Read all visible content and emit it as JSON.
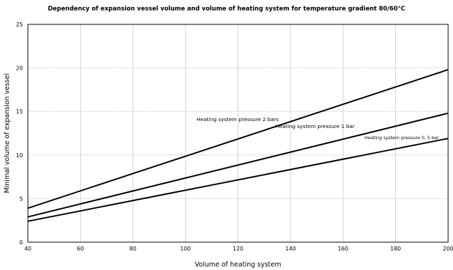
{
  "chart_data": {
    "type": "line",
    "title": "Dependency of expansion vessel volume and volume of heating system for temperature gradient 80/60°C",
    "xlabel": "Volume of heating system",
    "ylabel": "Minimal volume of expansion vessel",
    "xlim": [
      40,
      200
    ],
    "ylim": [
      0,
      25
    ],
    "xticks": [
      40,
      60,
      80,
      100,
      120,
      140,
      160,
      180,
      200
    ],
    "yticks": [
      0,
      5,
      10,
      15,
      20,
      25
    ],
    "grid": true,
    "series": [
      {
        "name": "Heating system pressure 2 bars",
        "x": [
          40,
          200
        ],
        "y": [
          3.9,
          19.8
        ]
      },
      {
        "name": "Heating system pressure 1 bar",
        "x": [
          40,
          200
        ],
        "y": [
          2.9,
          14.8
        ]
      },
      {
        "name": "Heating system pressure 0, 5 bar",
        "x": [
          40,
          200
        ],
        "y": [
          2.4,
          11.9
        ]
      }
    ]
  }
}
